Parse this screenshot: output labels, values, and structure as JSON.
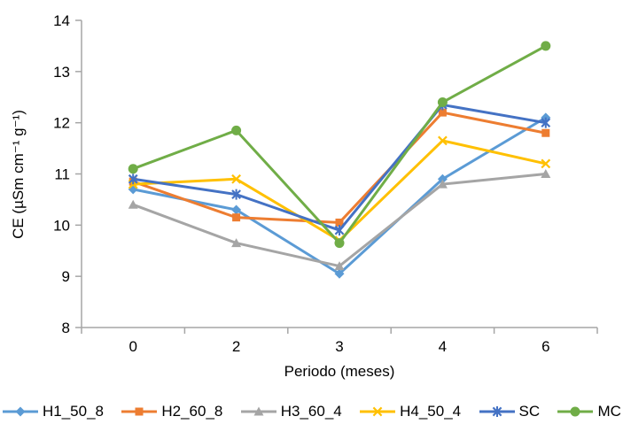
{
  "chart_data": {
    "type": "line",
    "title": "",
    "xlabel": "Periodo (meses)",
    "ylabel": "CE (µSm cm⁻¹ g⁻¹)",
    "categories": [
      "0",
      "2",
      "3",
      "4",
      "6"
    ],
    "y_ticks": [
      8,
      9,
      10,
      11,
      12,
      13,
      14
    ],
    "ylim": [
      8,
      14
    ],
    "grid": false,
    "legend_position": "bottom",
    "axis_color": "#a6a6a6",
    "series": [
      {
        "name": "H1_50_8",
        "color": "#5B9BD5",
        "marker": "diamond",
        "values": [
          10.7,
          10.3,
          9.05,
          10.9,
          12.1
        ]
      },
      {
        "name": "H2_60_8",
        "color": "#ED7D31",
        "marker": "square",
        "values": [
          10.85,
          10.15,
          10.05,
          12.2,
          11.8
        ]
      },
      {
        "name": "H3_60_4",
        "color": "#A5A5A5",
        "marker": "triangle",
        "values": [
          10.4,
          9.65,
          9.2,
          10.8,
          11.0
        ]
      },
      {
        "name": "H4_50_4",
        "color": "#FFC000",
        "marker": "x",
        "values": [
          10.8,
          10.9,
          9.7,
          11.65,
          11.2
        ]
      },
      {
        "name": "SC",
        "color": "#4472C4",
        "marker": "star",
        "values": [
          10.9,
          10.6,
          9.9,
          12.35,
          12.0
        ]
      },
      {
        "name": "MC",
        "color": "#70AD47",
        "marker": "circle",
        "values": [
          11.1,
          11.85,
          9.65,
          12.4,
          13.5
        ]
      }
    ]
  }
}
